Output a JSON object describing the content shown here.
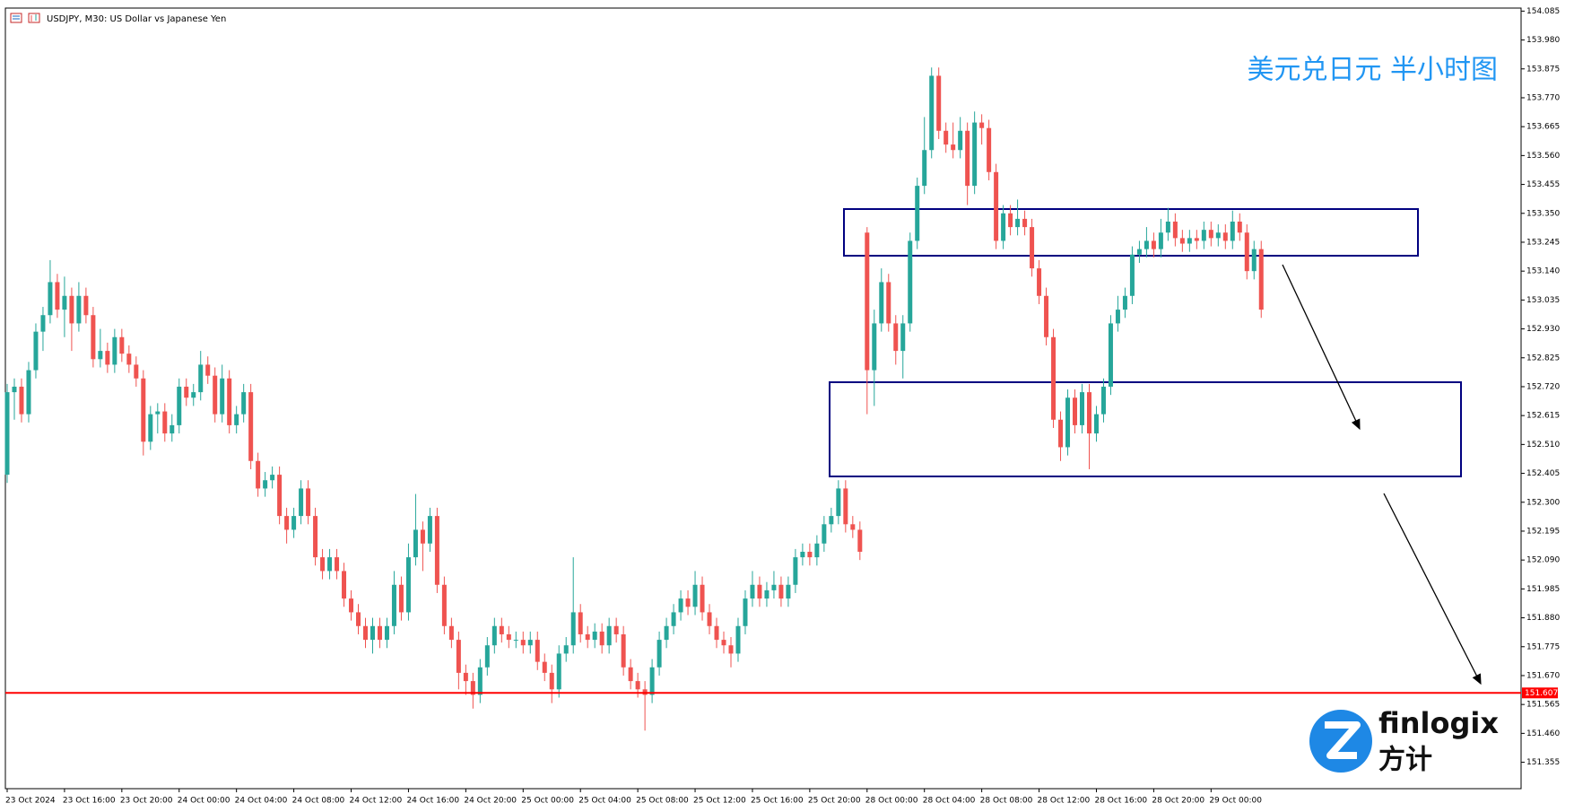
{
  "chart_data": {
    "type": "candlestick",
    "header": "USDJPY, M30:  US Dollar vs Japanese Yen",
    "title": "美元兑日元 半小时图",
    "logo": {
      "name": "finlogix",
      "sub": "方计"
    },
    "up_color": "#26a69a",
    "down_color": "#ef5350",
    "ylim": [
      151.259,
      154.096
    ],
    "yticks": [
      154.085,
      {
        "value": 153.98,
        "label": "153.980"
      },
      153.875,
      {
        "value": 153.77,
        "label": "153.770"
      },
      153.665,
      {
        "value": 153.56,
        "label": "153.560"
      },
      153.455,
      {
        "value": 153.35,
        "label": "153.350"
      },
      153.245,
      {
        "value": 153.14,
        "label": "153.140"
      },
      153.035,
      {
        "value": 152.93,
        "label": "152.930"
      },
      152.825,
      {
        "value": 152.72,
        "label": "152.720"
      },
      152.615,
      {
        "value": 152.51,
        "label": "152.510"
      },
      152.405,
      {
        "value": 152.3,
        "label": "152.300"
      },
      152.195,
      {
        "value": 152.09,
        "label": "152.090"
      },
      151.985,
      {
        "value": 151.88,
        "label": "151.880"
      },
      151.775,
      {
        "value": 151.67,
        "label": "151.670"
      },
      151.565,
      {
        "value": 151.46,
        "label": "151.460"
      },
      151.355
    ],
    "hline": {
      "value": 151.607,
      "label": "151.607",
      "color": "#ff0000"
    },
    "categories": [
      "23 Oct 2024",
      null,
      null,
      null,
      null,
      null,
      null,
      null,
      "23 Oct 16:00",
      null,
      null,
      null,
      null,
      null,
      null,
      null,
      "23 Oct 20:00",
      null,
      null,
      null,
      null,
      null,
      null,
      null,
      "24 Oct 00:00",
      null,
      null,
      null,
      null,
      null,
      null,
      null,
      "24 Oct 04:00",
      null,
      null,
      null,
      null,
      null,
      null,
      null,
      "24 Oct 08:00",
      null,
      null,
      null,
      null,
      null,
      null,
      null,
      "24 Oct 12:00",
      null,
      null,
      null,
      null,
      null,
      null,
      null,
      "24 Oct 16:00",
      null,
      null,
      null,
      null,
      null,
      null,
      null,
      "24 Oct 20:00",
      null,
      null,
      null,
      null,
      null,
      null,
      null,
      "25 Oct 00:00",
      null,
      null,
      null,
      null,
      null,
      null,
      null,
      "25 Oct 04:00",
      null,
      null,
      null,
      null,
      null,
      null,
      null,
      "25 Oct 08:00",
      null,
      null,
      null,
      null,
      null,
      null,
      null,
      "25 Oct 12:00",
      null,
      null,
      null,
      null,
      null,
      null,
      null,
      "25 Oct 16:00",
      null,
      null,
      null,
      null,
      null,
      null,
      null,
      "25 Oct 20:00",
      null,
      null,
      null,
      null,
      null,
      null,
      null,
      "28 Oct 00:00",
      null,
      null,
      null,
      null,
      null,
      null,
      null,
      "28 Oct 04:00",
      null,
      null,
      null,
      null,
      null,
      null,
      null,
      "28 Oct 08:00",
      null,
      null,
      null,
      null,
      null,
      null,
      null,
      "28 Oct 12:00",
      null,
      null,
      null,
      null,
      null,
      null,
      null,
      "28 Oct 16:00",
      null,
      null,
      null,
      null,
      null,
      null,
      null,
      "28 Oct 20:00",
      null,
      null,
      null,
      null,
      null,
      null,
      null,
      "29 Oct 00:00",
      null,
      null,
      null,
      null,
      null,
      null,
      null
    ],
    "candles": [
      [
        152.4,
        152.73,
        152.37,
        152.7
      ],
      [
        152.7,
        152.75,
        152.6,
        152.72
      ],
      [
        152.72,
        152.75,
        152.59,
        152.62
      ],
      [
        152.62,
        152.81,
        152.59,
        152.78
      ],
      [
        152.78,
        152.95,
        152.75,
        152.92
      ],
      [
        152.92,
        153.01,
        152.85,
        152.98
      ],
      [
        152.98,
        153.18,
        152.95,
        153.1
      ],
      [
        153.1,
        153.13,
        152.97,
        153.0
      ],
      [
        153.0,
        153.12,
        152.9,
        153.05
      ],
      [
        153.05,
        153.08,
        152.85,
        152.95
      ],
      [
        152.95,
        153.1,
        152.92,
        153.05
      ],
      [
        153.05,
        153.08,
        152.95,
        152.98
      ],
      [
        152.98,
        153.01,
        152.79,
        152.82
      ],
      [
        152.82,
        152.93,
        152.79,
        152.85
      ],
      [
        152.85,
        152.88,
        152.77,
        152.8
      ],
      [
        152.8,
        152.93,
        152.77,
        152.9
      ],
      [
        152.9,
        152.93,
        152.81,
        152.84
      ],
      [
        152.84,
        152.87,
        152.77,
        152.8
      ],
      [
        152.8,
        152.83,
        152.72,
        152.75
      ],
      [
        152.75,
        152.78,
        152.47,
        152.52
      ],
      [
        152.52,
        152.65,
        152.49,
        152.62
      ],
      [
        152.62,
        152.66,
        152.55,
        152.63
      ],
      [
        152.63,
        152.66,
        152.52,
        152.55
      ],
      [
        152.55,
        152.62,
        152.52,
        152.58
      ],
      [
        152.58,
        152.75,
        152.55,
        152.72
      ],
      [
        152.72,
        152.75,
        152.65,
        152.68
      ],
      [
        152.68,
        152.73,
        152.65,
        152.7
      ],
      [
        152.7,
        152.85,
        152.67,
        152.8
      ],
      [
        152.8,
        152.83,
        152.73,
        152.76
      ],
      [
        152.76,
        152.79,
        152.59,
        152.62
      ],
      [
        152.62,
        152.8,
        152.59,
        152.75
      ],
      [
        152.75,
        152.78,
        152.55,
        152.58
      ],
      [
        152.58,
        152.65,
        152.55,
        152.62
      ],
      [
        152.62,
        152.73,
        152.59,
        152.7
      ],
      [
        152.7,
        152.73,
        152.42,
        152.45
      ],
      [
        152.45,
        152.48,
        152.32,
        152.35
      ],
      [
        152.35,
        152.41,
        152.32,
        152.38
      ],
      [
        152.38,
        152.43,
        152.35,
        152.4
      ],
      [
        152.4,
        152.43,
        152.22,
        152.25
      ],
      [
        152.25,
        152.28,
        152.15,
        152.2
      ],
      [
        152.2,
        152.28,
        152.17,
        152.25
      ],
      [
        152.25,
        152.38,
        152.22,
        152.35
      ],
      [
        152.35,
        152.38,
        152.22,
        152.25
      ],
      [
        152.25,
        152.28,
        152.07,
        152.1
      ],
      [
        152.1,
        152.13,
        152.02,
        152.05
      ],
      [
        152.05,
        152.13,
        152.02,
        152.1
      ],
      [
        152.1,
        152.13,
        152.02,
        152.05
      ],
      [
        152.05,
        152.08,
        151.92,
        151.95
      ],
      [
        151.95,
        151.98,
        151.87,
        151.9
      ],
      [
        151.9,
        151.93,
        151.82,
        151.85
      ],
      [
        151.85,
        151.88,
        151.77,
        151.8
      ],
      [
        151.8,
        151.88,
        151.75,
        151.85
      ],
      [
        151.85,
        151.88,
        151.77,
        151.8
      ],
      [
        151.8,
        151.88,
        151.77,
        151.85
      ],
      [
        151.85,
        152.05,
        151.82,
        152.0
      ],
      [
        152.0,
        152.03,
        151.87,
        151.9
      ],
      [
        151.9,
        152.15,
        151.87,
        152.1
      ],
      [
        152.1,
        152.33,
        152.07,
        152.2
      ],
      [
        152.2,
        152.23,
        152.05,
        152.15
      ],
      [
        152.15,
        152.28,
        152.12,
        152.25
      ],
      [
        152.25,
        152.28,
        151.97,
        152.0
      ],
      [
        152.0,
        152.03,
        151.82,
        151.85
      ],
      [
        151.85,
        151.88,
        151.77,
        151.8
      ],
      [
        151.8,
        151.83,
        151.62,
        151.68
      ],
      [
        151.68,
        151.71,
        151.6,
        151.65
      ],
      [
        151.65,
        151.68,
        151.55,
        151.6
      ],
      [
        151.6,
        151.73,
        151.57,
        151.7
      ],
      [
        151.7,
        151.81,
        151.67,
        151.78
      ],
      [
        151.78,
        151.88,
        151.75,
        151.85
      ],
      [
        151.85,
        151.88,
        151.79,
        151.82
      ],
      [
        151.82,
        151.85,
        151.77,
        151.8
      ],
      [
        151.8,
        151.83,
        151.77,
        151.8
      ],
      [
        151.8,
        151.83,
        151.75,
        151.78
      ],
      [
        151.78,
        151.83,
        151.75,
        151.8
      ],
      [
        151.8,
        151.83,
        151.69,
        151.72
      ],
      [
        151.72,
        151.75,
        151.65,
        151.68
      ],
      [
        151.68,
        151.71,
        151.57,
        151.62
      ],
      [
        151.62,
        151.78,
        151.59,
        151.75
      ],
      [
        151.75,
        151.81,
        151.72,
        151.78
      ],
      [
        151.78,
        152.1,
        151.75,
        151.9
      ],
      [
        151.9,
        151.93,
        151.79,
        151.82
      ],
      [
        151.82,
        151.85,
        151.77,
        151.8
      ],
      [
        151.8,
        151.86,
        151.77,
        151.83
      ],
      [
        151.83,
        151.86,
        151.75,
        151.78
      ],
      [
        151.78,
        151.88,
        151.75,
        151.85
      ],
      [
        151.85,
        151.88,
        151.79,
        151.82
      ],
      [
        151.82,
        151.85,
        151.67,
        151.7
      ],
      [
        151.7,
        151.73,
        151.62,
        151.65
      ],
      [
        151.65,
        151.68,
        151.59,
        151.62
      ],
      [
        151.62,
        151.65,
        151.47,
        151.6
      ],
      [
        151.6,
        151.73,
        151.57,
        151.7
      ],
      [
        151.7,
        151.83,
        151.67,
        151.8
      ],
      [
        151.8,
        151.88,
        151.77,
        151.85
      ],
      [
        151.85,
        151.93,
        151.82,
        151.9
      ],
      [
        151.9,
        151.98,
        151.87,
        151.95
      ],
      [
        151.95,
        151.98,
        151.89,
        151.92
      ],
      [
        151.92,
        152.05,
        151.89,
        152.0
      ],
      [
        152.0,
        152.03,
        151.87,
        151.9
      ],
      [
        151.9,
        151.93,
        151.82,
        151.85
      ],
      [
        151.85,
        151.88,
        151.77,
        151.8
      ],
      [
        151.8,
        151.83,
        151.75,
        151.78
      ],
      [
        151.78,
        151.81,
        151.7,
        151.75
      ],
      [
        151.75,
        151.88,
        151.72,
        151.85
      ],
      [
        151.85,
        151.98,
        151.82,
        151.95
      ],
      [
        151.95,
        152.05,
        151.92,
        152.0
      ],
      [
        152.0,
        152.03,
        151.92,
        151.95
      ],
      [
        151.95,
        152.01,
        151.92,
        151.98
      ],
      [
        151.98,
        152.05,
        151.95,
        152.0
      ],
      [
        152.0,
        152.03,
        151.92,
        151.95
      ],
      [
        151.95,
        152.03,
        151.92,
        152.0
      ],
      [
        152.0,
        152.13,
        151.97,
        152.1
      ],
      [
        152.1,
        152.15,
        152.07,
        152.12
      ],
      [
        152.12,
        152.15,
        152.07,
        152.1
      ],
      [
        152.1,
        152.18,
        152.07,
        152.15
      ],
      [
        152.15,
        152.25,
        152.12,
        152.22
      ],
      [
        152.22,
        152.28,
        152.19,
        152.25
      ],
      [
        152.25,
        152.38,
        152.22,
        152.35
      ],
      [
        152.35,
        152.38,
        152.19,
        152.22
      ],
      [
        152.22,
        152.25,
        152.17,
        152.2
      ],
      [
        152.2,
        152.23,
        152.09,
        152.12
      ],
      [
        153.28,
        153.3,
        152.62,
        152.78
      ],
      [
        152.78,
        153.0,
        152.65,
        152.95
      ],
      [
        152.95,
        153.15,
        152.92,
        153.1
      ],
      [
        153.1,
        153.13,
        152.92,
        152.95
      ],
      [
        152.95,
        152.98,
        152.8,
        152.85
      ],
      [
        152.85,
        152.98,
        152.75,
        152.95
      ],
      [
        152.95,
        153.28,
        152.92,
        153.25
      ],
      [
        153.25,
        153.48,
        153.22,
        153.45
      ],
      [
        153.45,
        153.7,
        153.42,
        153.58
      ],
      [
        153.58,
        153.88,
        153.55,
        153.85
      ],
      [
        153.85,
        153.88,
        153.62,
        153.65
      ],
      [
        153.65,
        153.68,
        153.57,
        153.6
      ],
      [
        153.6,
        153.68,
        153.55,
        153.58
      ],
      [
        153.58,
        153.7,
        153.55,
        153.65
      ],
      [
        153.65,
        153.68,
        153.38,
        153.45
      ],
      [
        153.45,
        153.72,
        153.42,
        153.68
      ],
      [
        153.68,
        153.71,
        153.6,
        153.66
      ],
      [
        153.66,
        153.69,
        153.47,
        153.5
      ],
      [
        153.5,
        153.53,
        153.22,
        153.25
      ],
      [
        153.25,
        153.38,
        153.22,
        153.35
      ],
      [
        153.35,
        153.38,
        153.27,
        153.3
      ],
      [
        153.3,
        153.4,
        153.27,
        153.33
      ],
      [
        153.33,
        153.36,
        153.27,
        153.3
      ],
      [
        153.3,
        153.33,
        153.12,
        153.15
      ],
      [
        153.15,
        153.18,
        153.02,
        153.05
      ],
      [
        153.05,
        153.08,
        152.87,
        152.9
      ],
      [
        152.9,
        152.93,
        152.57,
        152.6
      ],
      [
        152.6,
        152.63,
        152.45,
        152.5
      ],
      [
        152.5,
        152.71,
        152.47,
        152.68
      ],
      [
        152.68,
        152.71,
        152.55,
        152.58
      ],
      [
        152.58,
        152.73,
        152.55,
        152.7
      ],
      [
        152.7,
        152.73,
        152.42,
        152.55
      ],
      [
        152.55,
        152.65,
        152.52,
        152.62
      ],
      [
        152.62,
        152.75,
        152.59,
        152.72
      ],
      [
        152.72,
        152.98,
        152.69,
        152.95
      ],
      [
        152.95,
        153.05,
        152.92,
        153.0
      ],
      [
        153.0,
        153.08,
        152.97,
        153.05
      ],
      [
        153.05,
        153.23,
        153.02,
        153.2
      ],
      [
        153.2,
        153.25,
        153.17,
        153.22
      ],
      [
        153.22,
        153.3,
        153.19,
        153.25
      ],
      [
        153.25,
        153.28,
        153.19,
        153.22
      ],
      [
        153.22,
        153.33,
        153.19,
        153.28
      ],
      [
        153.28,
        153.37,
        153.25,
        153.32
      ],
      [
        153.32,
        153.35,
        153.23,
        153.26
      ],
      [
        153.26,
        153.29,
        153.21,
        153.24
      ],
      [
        153.24,
        153.29,
        153.21,
        153.26
      ],
      [
        153.26,
        153.29,
        153.22,
        153.25
      ],
      [
        153.25,
        153.32,
        153.22,
        153.29
      ],
      [
        153.29,
        153.32,
        153.23,
        153.26
      ],
      [
        153.26,
        153.31,
        153.23,
        153.28
      ],
      [
        153.28,
        153.31,
        153.22,
        153.25
      ],
      [
        153.25,
        153.36,
        153.22,
        153.32
      ],
      [
        153.32,
        153.35,
        153.25,
        153.28
      ],
      [
        153.28,
        153.31,
        153.11,
        153.14
      ],
      [
        153.14,
        153.25,
        153.11,
        153.22
      ],
      [
        153.22,
        153.25,
        152.97,
        153.0
      ]
    ]
  }
}
